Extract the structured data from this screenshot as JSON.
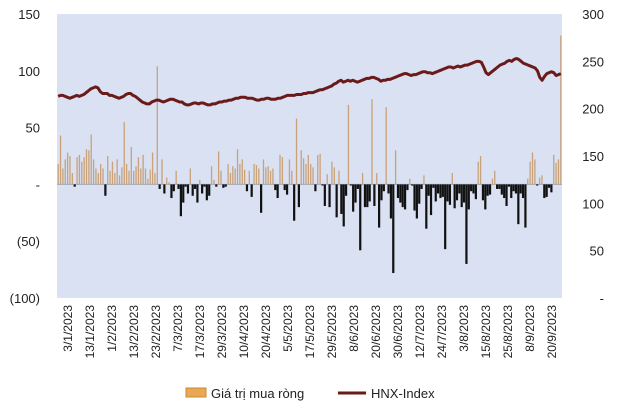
{
  "chart_data": {
    "type": "bar+line",
    "title": "",
    "colors": {
      "plot_background": "#d9e1f2",
      "bar_positive": "#c9a27a",
      "bar_negative": "#111111",
      "line": "#6b1a1a"
    },
    "left_axis": {
      "ylim": [
        -100,
        150
      ],
      "tick_labels": [
        "150",
        "100",
        "50",
        "-",
        "(50)",
        "(100)"
      ]
    },
    "right_axis": {
      "ylim": [
        0,
        300
      ],
      "tick_labels": [
        "300",
        "250",
        "200",
        "150",
        "100",
        "50",
        "-"
      ]
    },
    "x_tick_labels": [
      "3/1/2023",
      "13/1/2023",
      "1/2/2023",
      "13/2/2023",
      "23/2/2023",
      "7/3/2023",
      "17/3/2023",
      "29/3/2023",
      "10/4/2023",
      "20/4/2023",
      "5/5/2023",
      "17/5/2023",
      "29/5/2023",
      "8/6/2023",
      "20/6/2023",
      "30/6/2023",
      "12/7/2023",
      "24/7/2023",
      "3/8/2023",
      "15/8/2023",
      "25/8/2023",
      "8/9/2023",
      "20/9/2023"
    ],
    "legend": [
      {
        "label": "Giá trị mua ròng"
      },
      {
        "label": "HNX-Index"
      }
    ],
    "series": [
      {
        "name": "Giá trị mua ròng",
        "axis": "left",
        "values": [
          18,
          43,
          14,
          22,
          28,
          25,
          10,
          -2,
          24,
          26,
          20,
          24,
          31,
          30,
          44,
          22,
          14,
          10,
          18,
          14,
          -10,
          25,
          12,
          20,
          10,
          22,
          8,
          15,
          55,
          18,
          12,
          33,
          12,
          16,
          24,
          14,
          26,
          14,
          5,
          13,
          28,
          10,
          104,
          -4,
          22,
          -8,
          6,
          2,
          -12,
          -6,
          12,
          -4,
          -28,
          -16,
          -2,
          -8,
          14,
          -10,
          -4,
          -16,
          4,
          -8,
          -2,
          -14,
          -10,
          16,
          4,
          -2,
          29,
          12,
          -3,
          -2,
          18,
          10,
          16,
          14,
          31,
          18,
          22,
          13,
          -6,
          12,
          -11,
          18,
          17,
          14,
          -25,
          22,
          15,
          16,
          12,
          14,
          -5,
          -12,
          26,
          24,
          -5,
          -9,
          22,
          12,
          -32,
          58,
          -20,
          30,
          23,
          18,
          26,
          18,
          15,
          -6,
          26,
          27,
          -1,
          -19,
          9,
          -20,
          20,
          15,
          -29,
          12,
          -26,
          -37,
          -10,
          70,
          -1,
          -24,
          -16,
          -4,
          -58,
          10,
          -20,
          -20,
          -15,
          75,
          -19,
          10,
          -38,
          -14,
          -6,
          68,
          -8,
          -30,
          -78,
          30,
          -12,
          -16,
          -20,
          -22,
          -5,
          5,
          -1,
          -23,
          -30,
          -17,
          -4,
          8,
          -39,
          -10,
          -27,
          -3,
          -15,
          -8,
          -12,
          -11,
          -57,
          -15,
          -18,
          10,
          -21,
          -14,
          -8,
          -20,
          -16,
          -70,
          -22,
          -6,
          -8,
          -13,
          20,
          25,
          -14,
          -22,
          -10,
          -9,
          5,
          12,
          -4,
          -4,
          -9,
          -12,
          -19,
          -2,
          -12,
          -6,
          -8,
          -35,
          -8,
          -12,
          -38,
          5,
          20,
          28,
          22,
          -1,
          6,
          8,
          -12,
          -11,
          -3,
          -7,
          26,
          19,
          22,
          131
        ]
      },
      {
        "name": "HNX-Index",
        "axis": "right",
        "values": [
          213,
          214,
          214,
          213,
          212,
          211,
          212,
          213,
          214,
          213,
          214,
          215,
          217,
          219,
          221,
          222,
          223,
          222,
          218,
          216,
          216,
          216,
          214,
          214,
          213,
          212,
          211,
          212,
          213,
          215,
          216,
          216,
          214,
          213,
          211,
          209,
          207,
          206,
          205,
          205,
          207,
          208,
          209,
          209,
          208,
          207,
          208,
          209,
          210,
          210,
          209,
          208,
          207,
          207,
          205,
          204,
          204,
          205,
          206,
          206,
          205,
          206,
          206,
          205,
          204,
          204,
          205,
          205,
          206,
          207,
          207,
          208,
          208,
          209,
          209,
          210,
          211,
          211,
          212,
          212,
          212,
          211,
          211,
          211,
          210,
          209,
          209,
          210,
          210,
          211,
          211,
          210,
          210,
          210,
          211,
          211,
          212,
          213,
          214,
          214,
          214,
          214,
          215,
          215,
          215,
          216,
          216,
          217,
          217,
          217,
          218,
          219,
          220,
          220,
          221,
          222,
          223,
          224,
          226,
          227,
          229,
          230,
          228,
          229,
          230,
          229,
          230,
          229,
          228,
          229,
          230,
          231,
          232,
          232,
          233,
          233,
          232,
          231,
          229,
          230,
          230,
          231,
          231,
          232,
          233,
          234,
          235,
          236,
          237,
          237,
          236,
          235,
          236,
          236,
          237,
          238,
          239,
          239,
          238,
          238,
          237,
          238,
          239,
          240,
          241,
          242,
          243,
          244,
          244,
          243,
          244,
          245,
          244,
          245,
          246,
          246,
          247,
          248,
          249,
          250,
          250,
          249,
          244,
          238,
          236,
          238,
          240,
          242,
          244,
          246,
          247,
          248,
          250,
          251,
          250,
          252,
          253,
          252,
          250,
          248,
          247,
          246,
          245,
          244,
          243,
          240,
          233,
          230,
          234,
          237,
          238,
          239,
          238,
          235,
          236,
          237
        ]
      }
    ]
  }
}
